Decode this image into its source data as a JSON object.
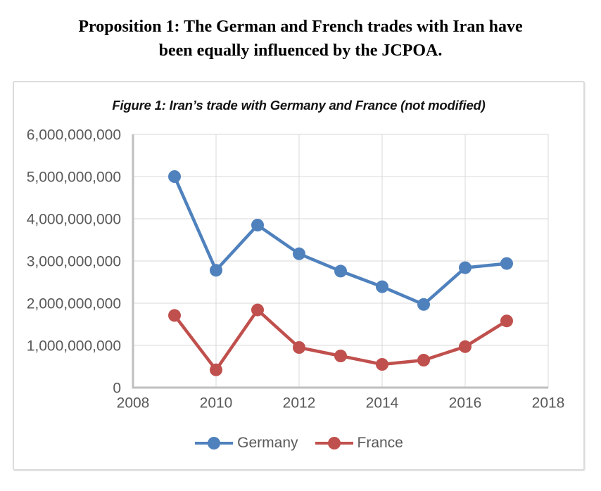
{
  "page": {
    "heading_line1": "Proposition 1: The German and French trades with Iran have",
    "heading_line2": "been equally influenced by the JCPOA."
  },
  "chart_data": {
    "type": "line",
    "title": "Figure 1: Iran’s trade with Germany and France (not modified)",
    "x": [
      2009,
      2010,
      2011,
      2012,
      2013,
      2014,
      2015,
      2016,
      2017
    ],
    "series": [
      {
        "name": "Germany",
        "color": "#4F81BD",
        "values": [
          5000000000,
          2780000000,
          3850000000,
          3170000000,
          2760000000,
          2390000000,
          1970000000,
          2840000000,
          2940000000
        ]
      },
      {
        "name": "France",
        "color": "#C0504D",
        "values": [
          1710000000,
          420000000,
          1840000000,
          950000000,
          750000000,
          550000000,
          650000000,
          970000000,
          1580000000
        ]
      }
    ],
    "xlim": [
      2008,
      2018
    ],
    "ylim": [
      0,
      6000000000
    ],
    "x_ticks": [
      2008,
      2010,
      2012,
      2014,
      2016,
      2018
    ],
    "y_ticks": [
      0,
      1000000000,
      2000000000,
      3000000000,
      4000000000,
      5000000000,
      6000000000
    ],
    "grid": true,
    "legend_position": "bottom",
    "xlabel": "",
    "ylabel": ""
  },
  "style": {
    "grid_color": "#D9D9D9",
    "axis_color": "#BFBFBF",
    "tick_text_color": "#595959",
    "figure_border_color": "#DBDBDB"
  }
}
